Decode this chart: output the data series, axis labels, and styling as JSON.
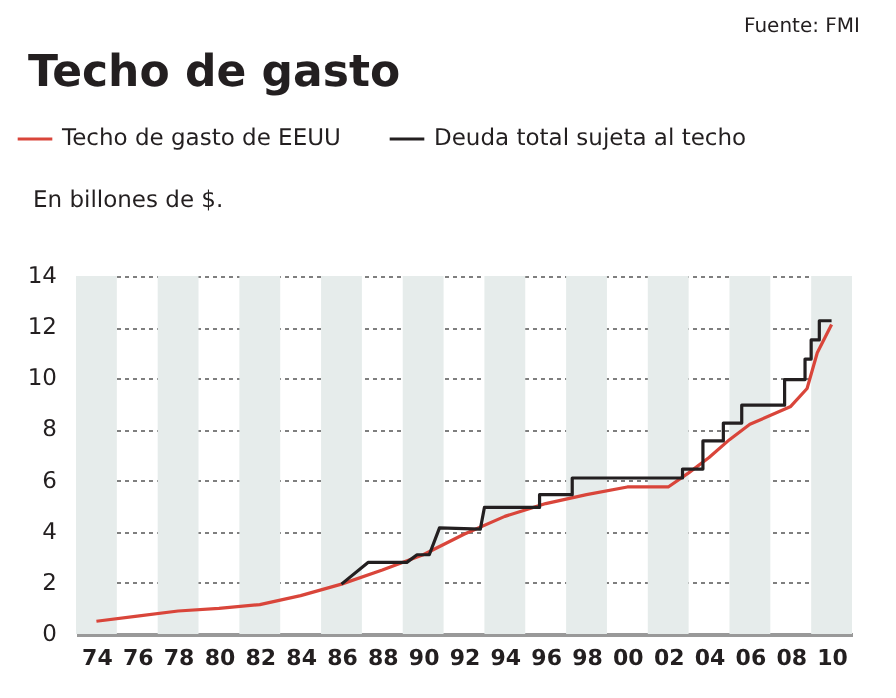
{
  "chart_data": {
    "type": "line",
    "title": "Techo de gasto",
    "ylabel": "En billones de $.",
    "annotations": [
      "Fuente: FMI"
    ],
    "xlim": [
      1973,
      2011
    ],
    "ylim": [
      0,
      14
    ],
    "xticks": [
      {
        "value": 1974,
        "label": "74"
      },
      {
        "value": 1976,
        "label": "76"
      },
      {
        "value": 1978,
        "label": "78"
      },
      {
        "value": 1980,
        "label": "80"
      },
      {
        "value": 1982,
        "label": "82"
      },
      {
        "value": 1984,
        "label": "84"
      },
      {
        "value": 1986,
        "label": "86"
      },
      {
        "value": 1988,
        "label": "88"
      },
      {
        "value": 1990,
        "label": "90"
      },
      {
        "value": 1992,
        "label": "92"
      },
      {
        "value": 1994,
        "label": "94"
      },
      {
        "value": 1996,
        "label": "96"
      },
      {
        "value": 1998,
        "label": "98"
      },
      {
        "value": 2000,
        "label": "00"
      },
      {
        "value": 2002,
        "label": "02"
      },
      {
        "value": 2004,
        "label": "04"
      },
      {
        "value": 2006,
        "label": "06"
      },
      {
        "value": 2008,
        "label": "08"
      },
      {
        "value": 2010,
        "label": "10"
      }
    ],
    "yticks": [
      0,
      2,
      4,
      6,
      8,
      10,
      12,
      14
    ],
    "grid": "y",
    "legend": "top",
    "line_style": "solid",
    "bands": [
      {
        "axis": "x",
        "from": 1973,
        "to": 1975,
        "color": "#e6eceb"
      },
      {
        "axis": "x",
        "from": 1977,
        "to": 1979,
        "color": "#e6eceb"
      },
      {
        "axis": "x",
        "from": 1981,
        "to": 1983,
        "color": "#e6eceb"
      },
      {
        "axis": "x",
        "from": 1985,
        "to": 1987,
        "color": "#e6eceb"
      },
      {
        "axis": "x",
        "from": 1989,
        "to": 1991,
        "color": "#e6eceb"
      },
      {
        "axis": "x",
        "from": 1993,
        "to": 1995,
        "color": "#e6eceb"
      },
      {
        "axis": "x",
        "from": 1997,
        "to": 1999,
        "color": "#e6eceb"
      },
      {
        "axis": "x",
        "from": 2001,
        "to": 2003,
        "color": "#e6eceb"
      },
      {
        "axis": "x",
        "from": 2005,
        "to": 2007,
        "color": "#e6eceb"
      },
      {
        "axis": "x",
        "from": 2009,
        "to": 2011,
        "color": "#e6eceb"
      }
    ],
    "series": [
      {
        "name": "Techo de gasto de EEUU",
        "color": "#d9453a",
        "x": [
          1974,
          1976,
          1978,
          1980,
          1982,
          1984,
          1986,
          1988,
          1990,
          1992,
          1994,
          1996,
          1998,
          2000,
          2002,
          2003,
          2004,
          2005,
          2006,
          2008,
          2008.8,
          2009.3,
          2010
        ],
        "values": [
          0.5,
          0.7,
          0.9,
          1.0,
          1.15,
          1.5,
          1.95,
          2.5,
          3.1,
          3.9,
          4.6,
          5.1,
          5.45,
          5.75,
          5.75,
          6.3,
          6.9,
          7.6,
          8.2,
          8.9,
          9.6,
          11.0,
          12.1
        ]
      },
      {
        "name": "Deuda total sujeta al techo",
        "color": "#231f20",
        "x": [
          1986,
          1987.3,
          1989.2,
          1989.7,
          1990.3,
          1990.8,
          1992.8,
          1993,
          1995.7,
          1995.7,
          1997.3,
          1997.3,
          2002.7,
          2002.7,
          2003.7,
          2003.7,
          2004.7,
          2004.7,
          2005.6,
          2005.6,
          2007.7,
          2007.7,
          2008.7,
          2008.7,
          2009.0,
          2009.0,
          2009.4,
          2009.4,
          2010
        ],
        "values": [
          1.95,
          2.8,
          2.8,
          3.1,
          3.1,
          4.15,
          4.1,
          4.95,
          4.95,
          5.45,
          5.45,
          6.1,
          6.1,
          6.45,
          6.45,
          7.55,
          7.55,
          8.25,
          8.25,
          8.95,
          8.95,
          9.95,
          9.95,
          10.75,
          10.75,
          11.5,
          11.5,
          12.25,
          12.25
        ]
      }
    ]
  }
}
